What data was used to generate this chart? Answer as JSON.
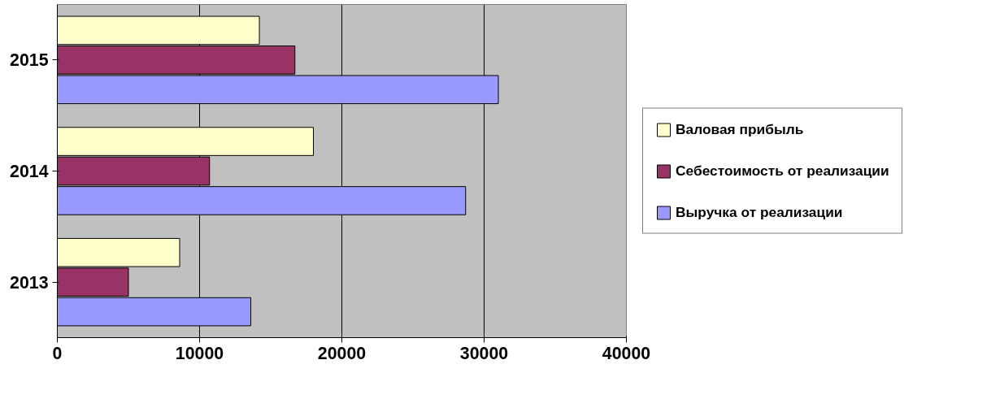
{
  "chart_data": {
    "type": "bar",
    "orientation": "horizontal",
    "categories": [
      "2015",
      "2014",
      "2013"
    ],
    "series": [
      {
        "name": "Валовая прибыль",
        "color": "#ffffcc",
        "values": [
          14200,
          18000,
          8600
        ]
      },
      {
        "name": "Себестоимость от реализации",
        "color": "#993366",
        "values": [
          16700,
          10700,
          5000
        ]
      },
      {
        "name": "Выручка от реализации",
        "color": "#9999ff",
        "values": [
          31000,
          28700,
          13600
        ]
      }
    ],
    "xlim": [
      0,
      40000
    ],
    "xticks": [
      0,
      10000,
      20000,
      30000,
      40000
    ],
    "grid": "x",
    "legend": "right"
  }
}
